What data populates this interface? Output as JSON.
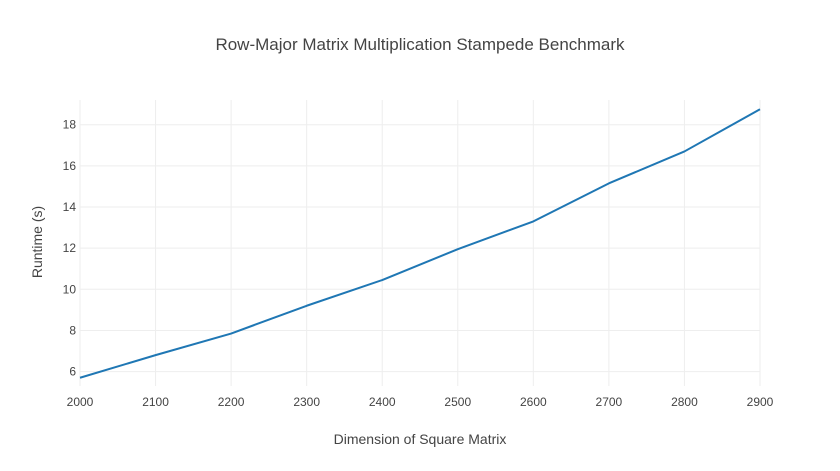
{
  "chart_data": {
    "type": "line",
    "title": "Row-Major Matrix Multiplication Stampede Benchmark",
    "xlabel": "Dimension of Square Matrix",
    "ylabel": "Runtime (s)",
    "xlim": [
      2000,
      2900
    ],
    "ylim": [
      5.3,
      19.2
    ],
    "grid": true,
    "x_ticks": [
      "2000",
      "2100",
      "2200",
      "2300",
      "2400",
      "2500",
      "2600",
      "2700",
      "2800",
      "2900"
    ],
    "y_ticks": [
      "6",
      "8",
      "10",
      "12",
      "14",
      "16",
      "18"
    ],
    "x": [
      2000,
      2100,
      2200,
      2300,
      2400,
      2500,
      2600,
      2700,
      2800,
      2900
    ],
    "series": [
      {
        "values": [
          5.7,
          6.8,
          7.85,
          9.2,
          10.45,
          11.95,
          13.3,
          15.15,
          16.7,
          18.75
        ],
        "color": "#1f77b4"
      }
    ]
  }
}
